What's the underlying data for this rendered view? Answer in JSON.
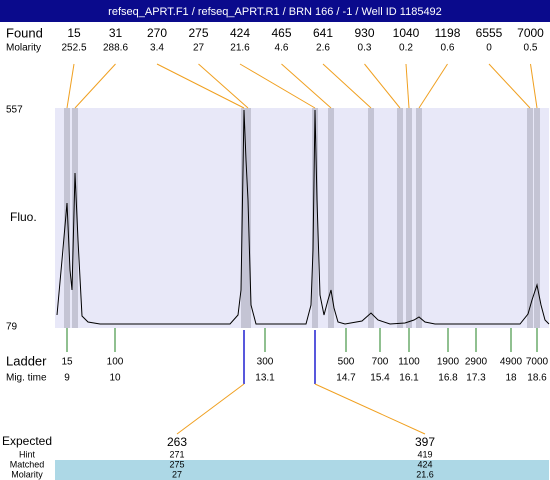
{
  "header": {
    "title": "refseq_APRT.F1 / refseq_APRT.R1 / BRN 166 / -1 / Well ID 1185492"
  },
  "found": {
    "label": "Found",
    "molarity_label": "Molarity",
    "peaks": [
      {
        "size": 15,
        "molarity": 252.5
      },
      {
        "size": 31,
        "molarity": 288.6
      },
      {
        "size": 270,
        "molarity": 3.4
      },
      {
        "size": 275,
        "molarity": 27
      },
      {
        "size": 424,
        "molarity": 21.6
      },
      {
        "size": 465,
        "molarity": 4.6
      },
      {
        "size": 641,
        "molarity": 2.6
      },
      {
        "size": 930,
        "molarity": 0.3
      },
      {
        "size": 1040,
        "molarity": 0.2
      },
      {
        "size": 1198,
        "molarity": 0.6
      },
      {
        "size": 6555,
        "molarity": 0
      },
      {
        "size": 7000,
        "molarity": 0.5
      }
    ]
  },
  "axis": {
    "label": "Fluo.",
    "max": 557,
    "min": 79
  },
  "ladder": {
    "label": "Ladder",
    "time_label": "Mig. time",
    "sizes": [
      15,
      100,
      300,
      500,
      700,
      1100,
      1900,
      2900,
      4900,
      7000
    ],
    "times": [
      9,
      10,
      13.1,
      14.7,
      15.4,
      16.1,
      16.8,
      17.3,
      18,
      18.6
    ]
  },
  "expected": {
    "label": "Expected",
    "hint_label": "Hint",
    "matched_label": "Matched",
    "molarity_label": "Molarity",
    "fragments": [
      {
        "expected": 263,
        "hint": 271,
        "matched": 275,
        "molarity": 27
      },
      {
        "expected": 397,
        "hint": 419,
        "matched": 424,
        "molarity": 21.6
      }
    ]
  }
}
